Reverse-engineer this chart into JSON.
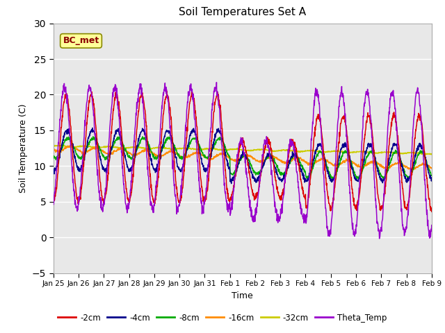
{
  "title": "Soil Temperatures Set A",
  "xlabel": "Time",
  "ylabel": "Soil Temperature (C)",
  "ylim": [
    -5,
    30
  ],
  "background_color": "#ffffff",
  "plot_bg_color": "#e8e8e8",
  "annotation_text": "BC_met",
  "annotation_color": "#8b0000",
  "annotation_bg": "#ffff99",
  "legend_entries": [
    "-2cm",
    "-4cm",
    "-8cm",
    "-16cm",
    "-32cm",
    "Theta_Temp"
  ],
  "line_colors": [
    "#dd0000",
    "#00008b",
    "#00aa00",
    "#ff8c00",
    "#cccc00",
    "#9900cc"
  ],
  "x_tick_labels": [
    "Jan 25",
    "Jan 26",
    "Jan 27",
    "Jan 28",
    "Jan 29",
    "Jan 30",
    "Jan 31",
    "Feb 1",
    "Feb 2",
    "Feb 3",
    "Feb 4",
    "Feb 5",
    "Feb 6",
    "Feb 7",
    "Feb 8",
    "Feb 9"
  ],
  "num_points": 1536
}
